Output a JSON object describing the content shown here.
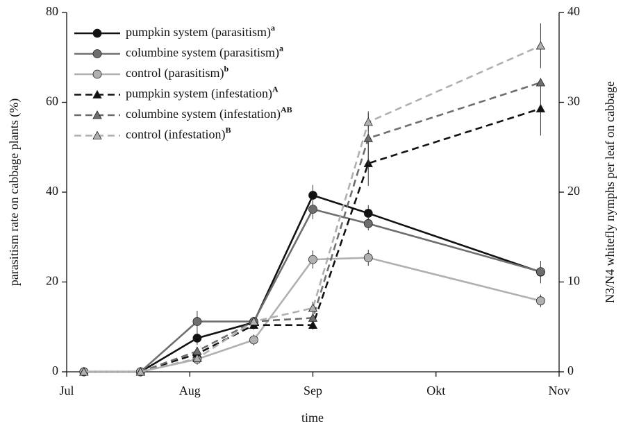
{
  "chart_data": {
    "type": "line",
    "ylabel": "parasitism rate on cabbage plants (%)",
    "y2label": "N3/N4 whitefly nymphs per leaf on cabbage",
    "xlabel": "time",
    "xlim": [
      0,
      4
    ],
    "xticks": [
      {
        "value": 0,
        "label": "Jul"
      },
      {
        "value": 1,
        "label": "Aug"
      },
      {
        "value": 2,
        "label": "Sep"
      },
      {
        "value": 3,
        "label": "Okt"
      },
      {
        "value": 4,
        "label": "Nov"
      }
    ],
    "ylim": [
      0,
      80
    ],
    "yticks": [
      0,
      20,
      40,
      60,
      80
    ],
    "y2lim": [
      0,
      40
    ],
    "y2ticks": [
      0,
      10,
      20,
      30,
      40
    ],
    "legend": "upper left",
    "x": [
      0.14,
      0.6,
      1.06,
      1.52,
      2.0,
      2.45,
      3.85
    ],
    "series": [
      {
        "name": "pumpkin system (parasitism)",
        "superscript": "a",
        "color": "#111111",
        "marker": "circle",
        "dash": false,
        "axis": "y",
        "values": [
          0,
          0,
          7.5,
          11,
          39.3,
          35.3,
          22.2
        ],
        "errors": [
          0,
          0,
          1.5,
          0,
          2.3,
          1.8,
          2.5
        ]
      },
      {
        "name": "columbine system (parasitism)",
        "superscript": "a",
        "color": "#6e6e6e",
        "marker": "circle",
        "dash": false,
        "axis": "y",
        "values": [
          0,
          0,
          11.2,
          11.2,
          36.2,
          33,
          22.3
        ],
        "errors": [
          0,
          0,
          2.4,
          0,
          2.2,
          1.5,
          0
        ]
      },
      {
        "name": "control (parasitism)",
        "superscript": "b",
        "color": "#b0b0b0",
        "marker": "circle",
        "dash": false,
        "axis": "y",
        "values": [
          0,
          0,
          2.8,
          7.1,
          25,
          25.4,
          15.8
        ],
        "errors": [
          0,
          0,
          1.2,
          1.2,
          2,
          1.8,
          1.4
        ]
      },
      {
        "name": "pumpkin system (infestation)",
        "superscript": "A",
        "color": "#111111",
        "marker": "triangle",
        "dash": true,
        "axis": "y2",
        "values": [
          0,
          0,
          2,
          5.2,
          5.2,
          23.2,
          29.3
        ],
        "errors": [
          0,
          0,
          0.3,
          0.5,
          0.5,
          2.5,
          3
        ]
      },
      {
        "name": "columbine system (infestation)",
        "superscript": "AB",
        "color": "#6e6e6e",
        "marker": "triangle",
        "dash": true,
        "axis": "y2",
        "values": [
          0,
          0,
          2.3,
          5.6,
          6,
          26,
          32.2
        ],
        "errors": [
          0,
          0,
          0.3,
          0.3,
          0.5,
          3,
          0
        ]
      },
      {
        "name": "control (infestation)",
        "superscript": "B",
        "color": "#b0b0b0",
        "marker": "triangle",
        "dash": true,
        "axis": "y2",
        "values": [
          0,
          0,
          1.5,
          5.6,
          7.1,
          27.8,
          36.3
        ],
        "errors": [
          0,
          0,
          0.3,
          0.3,
          0.7,
          1,
          2.5
        ]
      }
    ]
  }
}
